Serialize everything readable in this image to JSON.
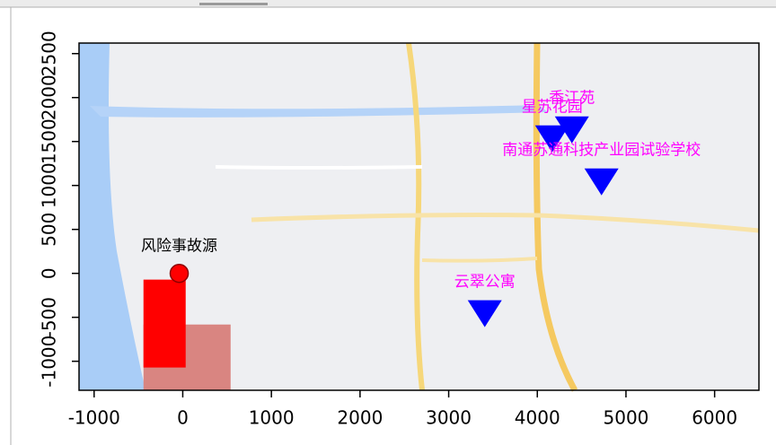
{
  "chart_data": {
    "type": "scatter",
    "xlim": [
      -1170,
      6500
    ],
    "ylim": [
      -1330,
      2620
    ],
    "xticks": [
      -1000,
      0,
      1000,
      2000,
      3000,
      4000,
      5000,
      6000
    ],
    "yticks": [
      -1000,
      -500,
      0,
      500,
      1000,
      1500,
      2000,
      2500
    ],
    "zones": [
      {
        "x0": -443,
        "x1": 540,
        "y0": -1330,
        "y1": -582,
        "color": "#d98581"
      },
      {
        "x0": -443,
        "x1": 33,
        "y0": -1071,
        "y1": -71,
        "color": "#ff0000"
      }
    ],
    "points": [
      {
        "label": "风险事故源",
        "x": -40,
        "y": 0,
        "marker": "circle",
        "color": "#ff0000",
        "label_color": "#000000"
      },
      {
        "label": "星苏花园",
        "x": 4167,
        "y": 1582,
        "marker": "triangle-down",
        "color": "#0000ff",
        "label_color": "#ff00ff"
      },
      {
        "label": "香江苑",
        "x": 4390,
        "y": 1684,
        "marker": "triangle-down",
        "color": "#0000ff",
        "label_color": "#ff00ff"
      },
      {
        "label": "南通苏通科技产业园试验学校",
        "x": 4724,
        "y": 1092,
        "marker": "triangle-down",
        "color": "#0000ff",
        "label_color": "#ff00ff"
      },
      {
        "label": "云翠公寓",
        "x": 3407,
        "y": -408,
        "marker": "triangle-down",
        "color": "#0000ff",
        "label_color": "#ff00ff"
      }
    ]
  }
}
